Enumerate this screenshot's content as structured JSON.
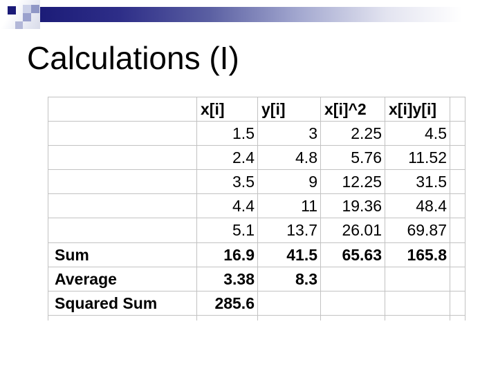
{
  "slide": {
    "title": "Calculations (I)"
  },
  "table": {
    "headers": [
      "x[i]",
      "y[i]",
      "x[i]^2",
      "x[i]y[i]"
    ],
    "rows": [
      {
        "label": "",
        "values": [
          "1.5",
          "3",
          "2.25",
          "4.5"
        ]
      },
      {
        "label": "",
        "values": [
          "2.4",
          "4.8",
          "5.76",
          "11.52"
        ]
      },
      {
        "label": "",
        "values": [
          "3.5",
          "9",
          "12.25",
          "31.5"
        ]
      },
      {
        "label": "",
        "values": [
          "4.4",
          "11",
          "19.36",
          "48.4"
        ]
      },
      {
        "label": "",
        "values": [
          "5.1",
          "13.7",
          "26.01",
          "69.87"
        ]
      },
      {
        "label": "Sum",
        "values": [
          "16.9",
          "41.5",
          "65.63",
          "165.8"
        ]
      },
      {
        "label": "Average",
        "values": [
          "3.38",
          "8.3",
          "",
          ""
        ]
      },
      {
        "label": "Squared Sum",
        "values": [
          "285.6",
          "",
          "",
          ""
        ]
      }
    ]
  },
  "colors": {
    "slide_background": "#ffffff",
    "bar_navy": "#1c1c78",
    "square_dark_navy": "#1a1a78",
    "square_pale_blue": "#ccd1e8",
    "square_slate_blue": "#8f97c6",
    "square_lavender": "#9aa1cd",
    "square_light_lavender": "#b2b7d8",
    "table_border": "#c2c2c2",
    "text": "#000000"
  }
}
